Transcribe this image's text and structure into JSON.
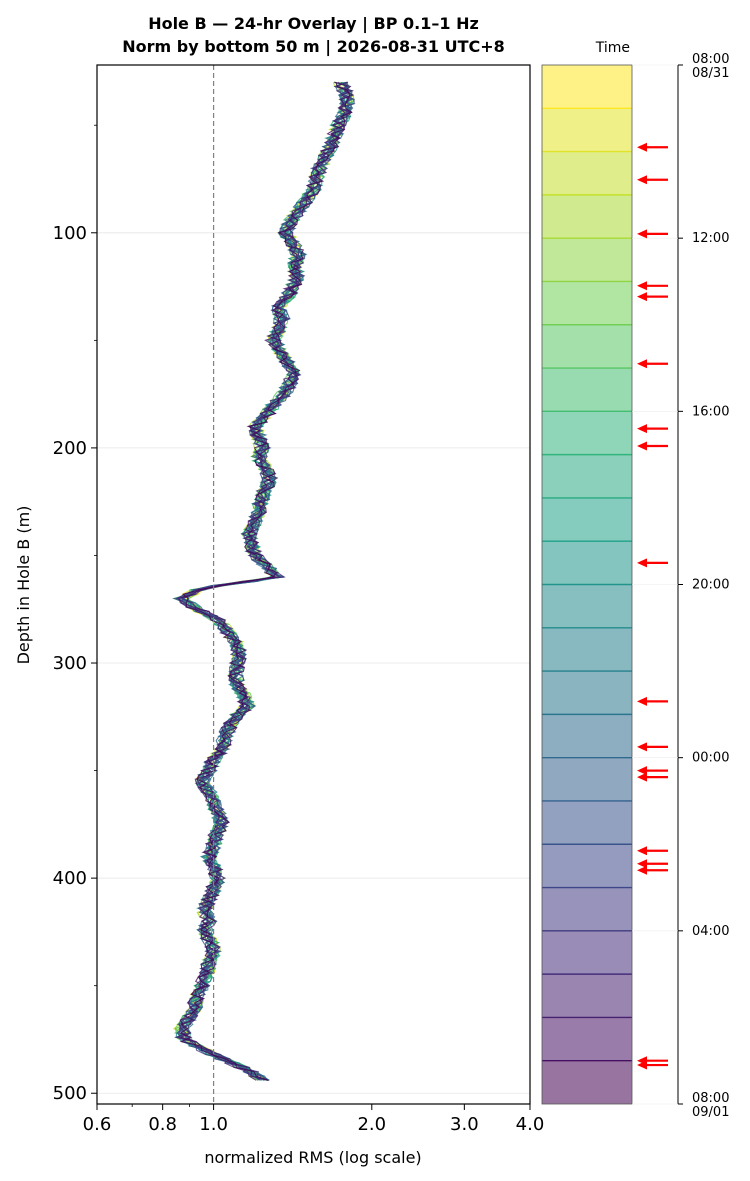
{
  "chart_data": {
    "type": "line",
    "title_lines": [
      "Hole B — 24-hr Overlay  |  BP 0.1–1 Hz",
      "Norm by bottom 50 m  |  2026-08-31 UTC+8"
    ],
    "xlabel": "normalized RMS  (log scale)",
    "ylabel": "Depth in Hole B (m)",
    "x_scale": "log",
    "xlim": [
      0.6,
      4.0
    ],
    "ylim": [
      505,
      22
    ],
    "y_inverted": true,
    "x_ticks": [
      {
        "value": 0.6,
        "label": "0.6"
      },
      {
        "value": 0.8,
        "label": "0.8"
      },
      {
        "value": 1.0,
        "label": "1.0"
      },
      {
        "value": 2.0,
        "label": "2.0"
      },
      {
        "value": 3.0,
        "label": "3.0"
      },
      {
        "value": 4.0,
        "label": "4.0"
      }
    ],
    "x_minor_ticks": [
      0.7,
      0.9
    ],
    "y_ticks": [
      {
        "value": 100,
        "label": "100"
      },
      {
        "value": 200,
        "label": "200"
      },
      {
        "value": 300,
        "label": "300"
      },
      {
        "value": 400,
        "label": "400"
      },
      {
        "value": 500,
        "label": "500"
      }
    ],
    "y_minor_ticks": [
      50,
      150,
      250,
      350,
      450
    ],
    "grid": "horizontal",
    "reference_line": {
      "x": 1.0,
      "style": "dashed",
      "color": "#808080"
    },
    "series_count": 24,
    "series_colormap": "viridis",
    "series_time_order": "first trace yellow (08:00 08/31), last trace dark purple (08:00 09/01)",
    "profile": {
      "depth": [
        30,
        35,
        40,
        45,
        50,
        60,
        70,
        80,
        85,
        90,
        95,
        100,
        105,
        110,
        115,
        120,
        125,
        130,
        135,
        140,
        145,
        150,
        155,
        160,
        165,
        170,
        175,
        180,
        185,
        190,
        195,
        200,
        205,
        210,
        215,
        220,
        225,
        230,
        235,
        240,
        245,
        250,
        255,
        260,
        265,
        270,
        275,
        280,
        285,
        290,
        295,
        300,
        305,
        310,
        315,
        320,
        325,
        330,
        335,
        340,
        345,
        350,
        355,
        360,
        365,
        370,
        375,
        380,
        385,
        390,
        395,
        400,
        405,
        410,
        415,
        420,
        425,
        430,
        435,
        440,
        445,
        450,
        455,
        460,
        465,
        470,
        475,
        480,
        485,
        490,
        495
      ],
      "nrms": [
        1.75,
        1.78,
        1.8,
        1.77,
        1.73,
        1.67,
        1.59,
        1.55,
        1.5,
        1.45,
        1.4,
        1.37,
        1.42,
        1.45,
        1.43,
        1.44,
        1.42,
        1.38,
        1.33,
        1.35,
        1.33,
        1.3,
        1.34,
        1.38,
        1.42,
        1.4,
        1.36,
        1.3,
        1.26,
        1.2,
        1.22,
        1.24,
        1.22,
        1.26,
        1.28,
        1.25,
        1.23,
        1.22,
        1.2,
        1.17,
        1.18,
        1.2,
        1.26,
        1.32,
        0.95,
        0.87,
        0.93,
        1.02,
        1.06,
        1.1,
        1.12,
        1.11,
        1.1,
        1.11,
        1.14,
        1.16,
        1.1,
        1.07,
        1.05,
        1.04,
        1.0,
        0.98,
        0.95,
        0.98,
        1.0,
        1.02,
        1.04,
        1.01,
        1.0,
        0.98,
        1.0,
        1.02,
        1.0,
        0.98,
        0.96,
        0.98,
        0.96,
        0.99,
        1.0,
        0.98,
        0.97,
        0.95,
        0.93,
        0.92,
        0.9,
        0.87,
        0.88,
        0.96,
        1.06,
        1.18,
        1.25
      ]
    },
    "colorbar": {
      "label": "Time",
      "segments": 24,
      "colormap": "viridis",
      "time_range": [
        "08:00 08/31",
        "08:00 09/01"
      ],
      "ticks": [
        {
          "hour": 0,
          "label": [
            "08:00",
            "08/31"
          ]
        },
        {
          "hour": 4,
          "label": [
            "12:00"
          ]
        },
        {
          "hour": 8,
          "label": [
            "16:00"
          ]
        },
        {
          "hour": 12,
          "label": [
            "20:00"
          ]
        },
        {
          "hour": 16,
          "label": [
            "00:00"
          ]
        },
        {
          "hour": 20,
          "label": [
            "04:00"
          ]
        },
        {
          "hour": 24,
          "label": [
            "08:00",
            "09/01"
          ]
        }
      ],
      "event_marker_color": "#ff0000",
      "event_hours": [
        1.9,
        2.65,
        3.9,
        5.1,
        5.35,
        6.9,
        8.4,
        8.8,
        11.5,
        14.7,
        15.75,
        16.3,
        16.45,
        18.15,
        18.45,
        18.6,
        23.0,
        23.1
      ]
    }
  }
}
